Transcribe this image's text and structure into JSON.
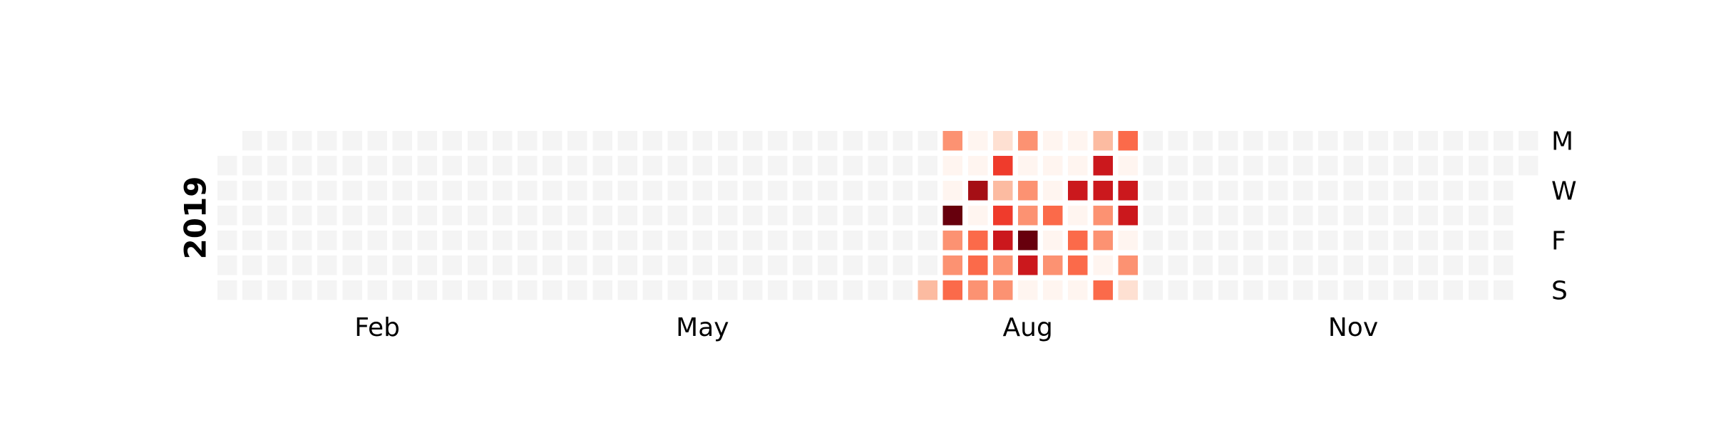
{
  "chart_data": {
    "type": "heatmap",
    "year_label": "2019",
    "day_labels": [
      {
        "row": 0,
        "text": "M"
      },
      {
        "row": 2,
        "text": "W"
      },
      {
        "row": 4,
        "text": "F"
      },
      {
        "row": 6,
        "text": "S"
      }
    ],
    "month_labels": [
      {
        "week": 6,
        "text": "Feb"
      },
      {
        "week": 19,
        "text": "May"
      },
      {
        "week": 32,
        "text": "Aug"
      },
      {
        "week": 45,
        "text": "Nov"
      }
    ],
    "first_week_start_row": 1,
    "total_weeks": 53,
    "empty_color": "#f4f4f4",
    "colorscale": [
      "#fff5f0",
      "#fee0d2",
      "#fcbba1",
      "#fc9272",
      "#fb6a4a",
      "#ef3b2c",
      "#cb181d",
      "#a50f15",
      "#67000d"
    ],
    "value_range": [
      0,
      8
    ],
    "active_weeks": [
      {
        "week": 28,
        "values": [
          null,
          null,
          null,
          null,
          null,
          null,
          2
        ]
      },
      {
        "week": 29,
        "values": [
          3,
          0,
          0,
          8,
          3,
          3,
          4
        ]
      },
      {
        "week": 30,
        "values": [
          0,
          0,
          7,
          0,
          4,
          4,
          3
        ]
      },
      {
        "week": 31,
        "values": [
          1,
          5,
          2,
          5,
          6,
          3,
          3
        ]
      },
      {
        "week": 32,
        "values": [
          3,
          0,
          3,
          3,
          8,
          6,
          0
        ]
      },
      {
        "week": 33,
        "values": [
          0,
          0,
          0,
          4,
          0,
          3,
          0
        ]
      },
      {
        "week": 34,
        "values": [
          0,
          0,
          6,
          0,
          4,
          4,
          0
        ]
      },
      {
        "week": 35,
        "values": [
          2,
          6,
          6,
          3,
          3,
          0,
          4
        ]
      },
      {
        "week": 36,
        "values": [
          4,
          0,
          6,
          6,
          0,
          3,
          1
        ]
      }
    ]
  }
}
